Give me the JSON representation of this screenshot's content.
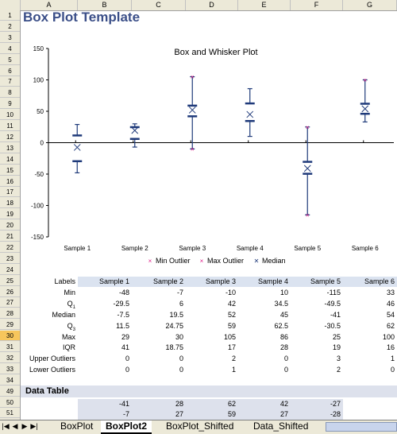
{
  "columns": [
    "A",
    "B",
    "C",
    "D",
    "E",
    "F",
    "G"
  ],
  "rows": [
    "1",
    "2",
    "3",
    "4",
    "5",
    "6",
    "7",
    "8",
    "9",
    "10",
    "11",
    "12",
    "13",
    "14",
    "15",
    "16",
    "17",
    "18",
    "19",
    "20",
    "21",
    "22",
    "23",
    "24",
    "25",
    "26",
    "27",
    "28",
    "29",
    "30",
    "31",
    "32",
    "33",
    "34",
    "49",
    "50",
    "51"
  ],
  "selected_row": "30",
  "sheet_title": "Box Plot Template",
  "chart_data": {
    "type": "box",
    "title": "Box and Whisker Plot",
    "categories": [
      "Sample 1",
      "Sample 2",
      "Sample 3",
      "Sample 4",
      "Sample 5",
      "Sample 6"
    ],
    "ylim": [
      -150,
      150
    ],
    "yticks": [
      150,
      100,
      50,
      0,
      -50,
      -100,
      -150
    ],
    "min": [
      -48,
      -7,
      -10,
      10,
      -115,
      33
    ],
    "q1": [
      -29.5,
      6,
      42,
      34.5,
      -49.5,
      46
    ],
    "median": [
      -7.5,
      19.5,
      52,
      45,
      -41,
      54
    ],
    "q3": [
      11.5,
      24.75,
      59,
      62.5,
      -30.5,
      62
    ],
    "max": [
      29,
      30,
      105,
      86,
      25,
      100
    ],
    "min_outliers": [
      [],
      [],
      [
        -10
      ],
      [],
      [
        -115
      ],
      []
    ],
    "max_outliers": [
      [],
      [],
      [
        105
      ],
      [],
      [
        25
      ],
      [
        100
      ]
    ],
    "legend": [
      "Min Outlier",
      "Max Outlier",
      "Median"
    ],
    "colors": {
      "box": "#1f3a7a",
      "outlier": "#e0208a",
      "median": "#1f3a7a"
    }
  },
  "table": {
    "header_label": "Labels",
    "samples": [
      "Sample 1",
      "Sample 2",
      "Sample 3",
      "Sample 4",
      "Sample 5",
      "Sample 6"
    ],
    "rows": [
      {
        "label": "Min",
        "values": [
          "-48",
          "-7",
          "-10",
          "10",
          "-115",
          "33"
        ]
      },
      {
        "label": "Q1",
        "values": [
          "-29.5",
          "6",
          "42",
          "34.5",
          "-49.5",
          "46"
        ]
      },
      {
        "label": "Median",
        "values": [
          "-7.5",
          "19.5",
          "52",
          "45",
          "-41",
          "54"
        ]
      },
      {
        "label": "Q3",
        "values": [
          "11.5",
          "24.75",
          "59",
          "62.5",
          "-30.5",
          "62"
        ]
      },
      {
        "label": "Max",
        "values": [
          "29",
          "30",
          "105",
          "86",
          "25",
          "100"
        ]
      },
      {
        "label": "IQR",
        "values": [
          "41",
          "18.75",
          "17",
          "28",
          "19",
          "16"
        ]
      },
      {
        "label": "Upper Outliers",
        "values": [
          "0",
          "0",
          "2",
          "0",
          "3",
          "1"
        ]
      },
      {
        "label": "Lower Outliers",
        "values": [
          "0",
          "0",
          "1",
          "0",
          "2",
          "0"
        ]
      }
    ]
  },
  "data_table": {
    "title": "Data Table",
    "rows": [
      [
        "-41",
        "28",
        "62",
        "42",
        "-27"
      ],
      [
        "-7",
        "27",
        "59",
        "27",
        "-28"
      ]
    ]
  },
  "tabs": [
    "BoxPlot",
    "BoxPlot2",
    "BoxPlot_Shifted",
    "Data_Shifted"
  ],
  "active_tab": "BoxPlot2"
}
